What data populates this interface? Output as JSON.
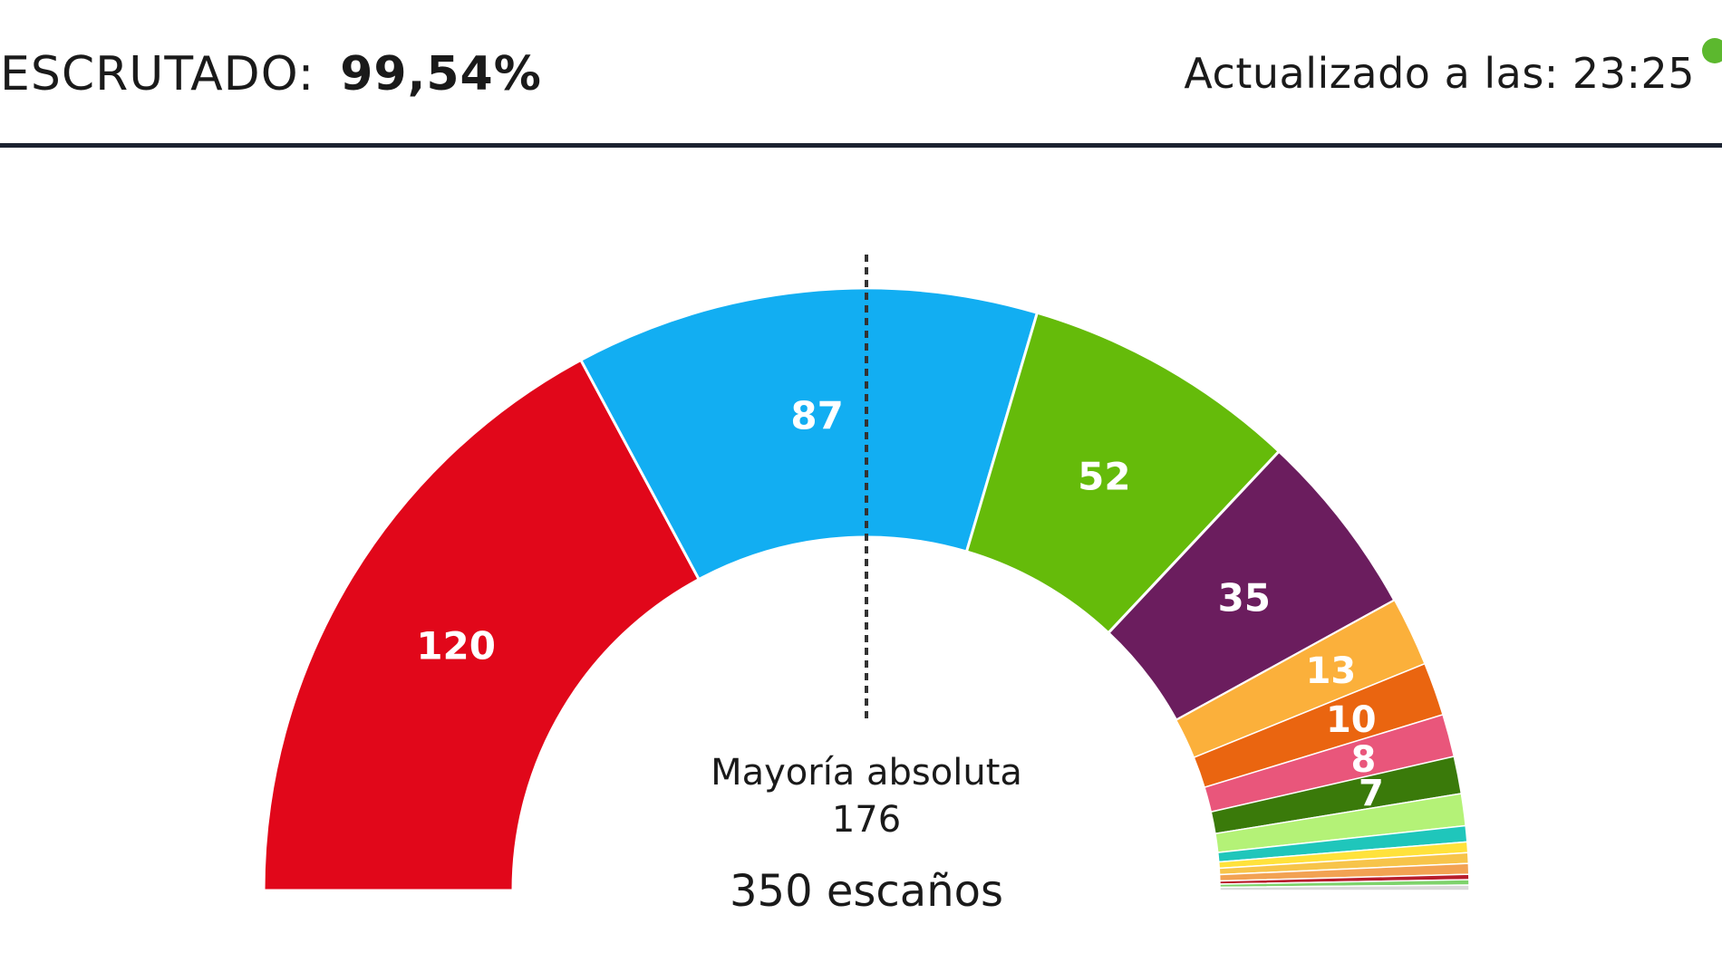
{
  "header": {
    "scrutiny_label": "ESCRUTADO:",
    "scrutiny_value": "99,54%",
    "updated_text": "Actualizado a las: 23:25"
  },
  "colors": {
    "rule": "#1c2230",
    "live_dot": "#5cb82e"
  },
  "chart_data": {
    "type": "hemicycle",
    "total_seats": 350,
    "total_label": "350 escaños",
    "majority_label": "Mayoría absoluta",
    "majority_value": "176",
    "parties": [
      {
        "seats": 120,
        "color": "#e1071a",
        "label": "120"
      },
      {
        "seats": 87,
        "color": "#12aef2",
        "label": "87"
      },
      {
        "seats": 52,
        "color": "#65bb0a",
        "label": "52"
      },
      {
        "seats": 35,
        "color": "#6b1d5e",
        "label": "35"
      },
      {
        "seats": 13,
        "color": "#fbb03b",
        "label": "13"
      },
      {
        "seats": 10,
        "color": "#ea6510",
        "label": "10"
      },
      {
        "seats": 8,
        "color": "#e9567b",
        "label": "8"
      },
      {
        "seats": 7,
        "color": "#3a7a0a",
        "label": "7"
      },
      {
        "seats": 6,
        "color": "#b4f277",
        "label": ""
      },
      {
        "seats": 3,
        "color": "#1fc6bb",
        "label": ""
      },
      {
        "seats": 2,
        "color": "#ffe23b",
        "label": ""
      },
      {
        "seats": 2,
        "color": "#f7c44a",
        "label": ""
      },
      {
        "seats": 2,
        "color": "#f2a253",
        "label": ""
      },
      {
        "seats": 1,
        "color": "#b71c2c",
        "label": ""
      },
      {
        "seats": 1,
        "color": "#7ed36c",
        "label": ""
      },
      {
        "seats": 1,
        "color": "#d9d9d9",
        "label": ""
      }
    ]
  }
}
